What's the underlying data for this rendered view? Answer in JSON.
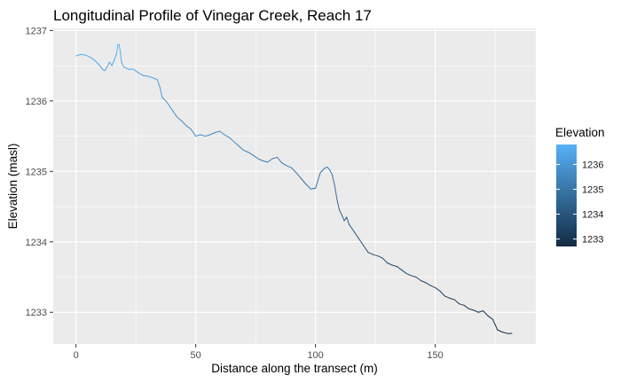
{
  "chart_data": {
    "type": "line",
    "title": "Longitudinal Profile of Vinegar Creek, Reach 17",
    "xlabel": "Distance along the transect (m)",
    "ylabel": "Elevation (masl)",
    "xlim": [
      -9.5,
      192
    ],
    "ylim": [
      1232.55,
      1237.03
    ],
    "x_ticks": [
      0,
      50,
      100,
      150
    ],
    "y_ticks": [
      1233,
      1234,
      1235,
      1236,
      1237
    ],
    "grid": true,
    "color_scale": {
      "title": "Elevation",
      "low_color": "#132B43",
      "high_color": "#56B1F7",
      "limits": [
        1232.7,
        1236.8
      ],
      "breaks": [
        1233,
        1234,
        1235,
        1236
      ]
    },
    "legend_position": "right",
    "series": [
      {
        "x": [
          0,
          2,
          4,
          6,
          8,
          10,
          11,
          12,
          13,
          14,
          15,
          16,
          17,
          17.5,
          18,
          18.5,
          19,
          20,
          22,
          24,
          26,
          28,
          30,
          32,
          34,
          35,
          36,
          38,
          40,
          42,
          44,
          46,
          48,
          49,
          50,
          52,
          54,
          56,
          58,
          60,
          62,
          64,
          66,
          68,
          70,
          72,
          74,
          76,
          78,
          80,
          82,
          84,
          86,
          88,
          90,
          92,
          94,
          96,
          98,
          100,
          102,
          104,
          105,
          106,
          107,
          108,
          109,
          110,
          111,
          112,
          113,
          114,
          116,
          118,
          120,
          122,
          124,
          126,
          128,
          130,
          132,
          134,
          136,
          138,
          140,
          142,
          144,
          146,
          148,
          150,
          152,
          154,
          156,
          158,
          160,
          162,
          164,
          166,
          168,
          170,
          172,
          174,
          176,
          178,
          180,
          182
        ],
        "y": [
          1236.64,
          1236.66,
          1236.65,
          1236.62,
          1236.57,
          1236.5,
          1236.45,
          1236.43,
          1236.48,
          1236.55,
          1236.5,
          1236.58,
          1236.68,
          1236.8,
          1236.8,
          1236.7,
          1236.55,
          1236.48,
          1236.45,
          1236.45,
          1236.4,
          1236.36,
          1236.35,
          1236.33,
          1236.3,
          1236.2,
          1236.05,
          1235.98,
          1235.88,
          1235.78,
          1235.72,
          1235.65,
          1235.6,
          1235.55,
          1235.5,
          1235.52,
          1235.5,
          1235.52,
          1235.55,
          1235.57,
          1235.52,
          1235.48,
          1235.42,
          1235.36,
          1235.3,
          1235.27,
          1235.23,
          1235.18,
          1235.15,
          1235.13,
          1235.18,
          1235.2,
          1235.12,
          1235.08,
          1235.05,
          1234.98,
          1234.9,
          1234.82,
          1234.75,
          1234.76,
          1234.98,
          1235.05,
          1235.06,
          1235.02,
          1234.95,
          1234.8,
          1234.6,
          1234.45,
          1234.38,
          1234.3,
          1234.35,
          1234.25,
          1234.15,
          1234.05,
          1233.95,
          1233.85,
          1233.82,
          1233.8,
          1233.77,
          1233.7,
          1233.67,
          1233.65,
          1233.6,
          1233.55,
          1233.52,
          1233.5,
          1233.45,
          1233.42,
          1233.38,
          1233.35,
          1233.3,
          1233.23,
          1233.2,
          1233.18,
          1233.12,
          1233.1,
          1233.05,
          1233.03,
          1233.0,
          1233.02,
          1232.95,
          1232.9,
          1232.75,
          1232.72,
          1232.7,
          1232.7
        ]
      }
    ]
  }
}
